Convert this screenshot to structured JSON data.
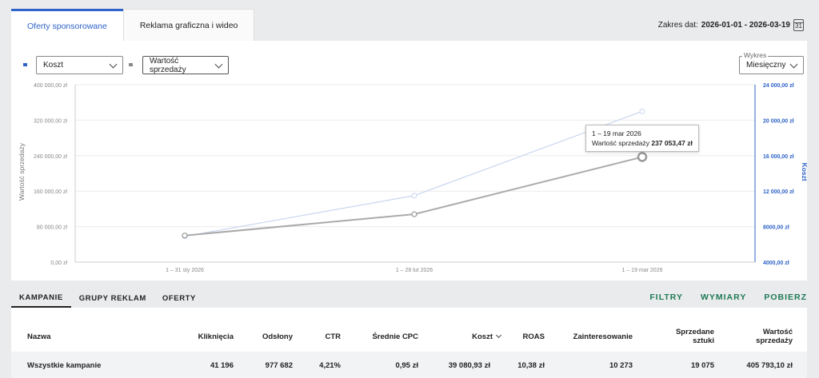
{
  "tabs": [
    {
      "label": "Oferty sponsorowane",
      "active": true
    },
    {
      "label": "Reklama graficzna i wideo",
      "active": false
    }
  ],
  "date_range": {
    "label": "Zakres dat:",
    "value": "2026-01-01 - 2026-03-19",
    "calendar_day": "31"
  },
  "controls": {
    "metric1": "Koszt",
    "metric2": "Wartość sprzedaży",
    "period_label": "Wykres",
    "period_value": "Miesięczny"
  },
  "colors": {
    "accent": "#2f63c7",
    "sales_line": "#aaaaaa",
    "cost_line": "#c8d6ef",
    "action": "#1f7a55"
  },
  "chart_data": {
    "type": "line",
    "categories": [
      "1 – 31 sty 2026",
      "1 – 28 lut 2026",
      "1 – 19 mar 2026"
    ],
    "series": [
      {
        "name": "Wartość sprzedaży",
        "axis": "left",
        "values": [
          60000,
          108000,
          237053.47
        ]
      },
      {
        "name": "Koszt",
        "axis": "right",
        "values": [
          6900,
          11500,
          21000
        ]
      }
    ],
    "ylabel": "Wartość sprzedaży",
    "y2label": "Koszt",
    "ylim": [
      0,
      400000
    ],
    "y2lim": [
      4000,
      24000
    ],
    "yticks": [
      "0,00 zł",
      "80 000,00 zł",
      "160 000,00 zł",
      "240 000,00 zł",
      "320 000,00 zł",
      "400 000,00 zł"
    ],
    "y2ticks": [
      "4000,00 zł",
      "8000,00 zł",
      "12 000,00 zł",
      "16 000,00 zł",
      "20 000,00 zł",
      "24 000,00 zł"
    ],
    "grid": true,
    "tooltip": {
      "title": "1 – 19 mar 2026",
      "label": "Wartość sprzedaży",
      "value": "237 053,47 zł"
    }
  },
  "bottom_tabs": [
    "KAMPANIE",
    "GRUPY REKLAM",
    "OFERTY"
  ],
  "actions": [
    "FILTRY",
    "WYMIARY",
    "POBIERZ"
  ],
  "table": {
    "headers": [
      "Nazwa",
      "Kliknięcia",
      "Odsłony",
      "CTR",
      "Średnie CPC",
      "Koszt",
      "ROAS",
      "Zainteresowanie",
      "Sprzedane sztuki",
      "Wartość sprzedaży"
    ],
    "row": [
      "Wszystkie kampanie",
      "41 196",
      "977 682",
      "4,21%",
      "0,95 zł",
      "39 080,93 zł",
      "10,38 zł",
      "10 273",
      "19 075",
      "405 793,10 zł"
    ]
  }
}
